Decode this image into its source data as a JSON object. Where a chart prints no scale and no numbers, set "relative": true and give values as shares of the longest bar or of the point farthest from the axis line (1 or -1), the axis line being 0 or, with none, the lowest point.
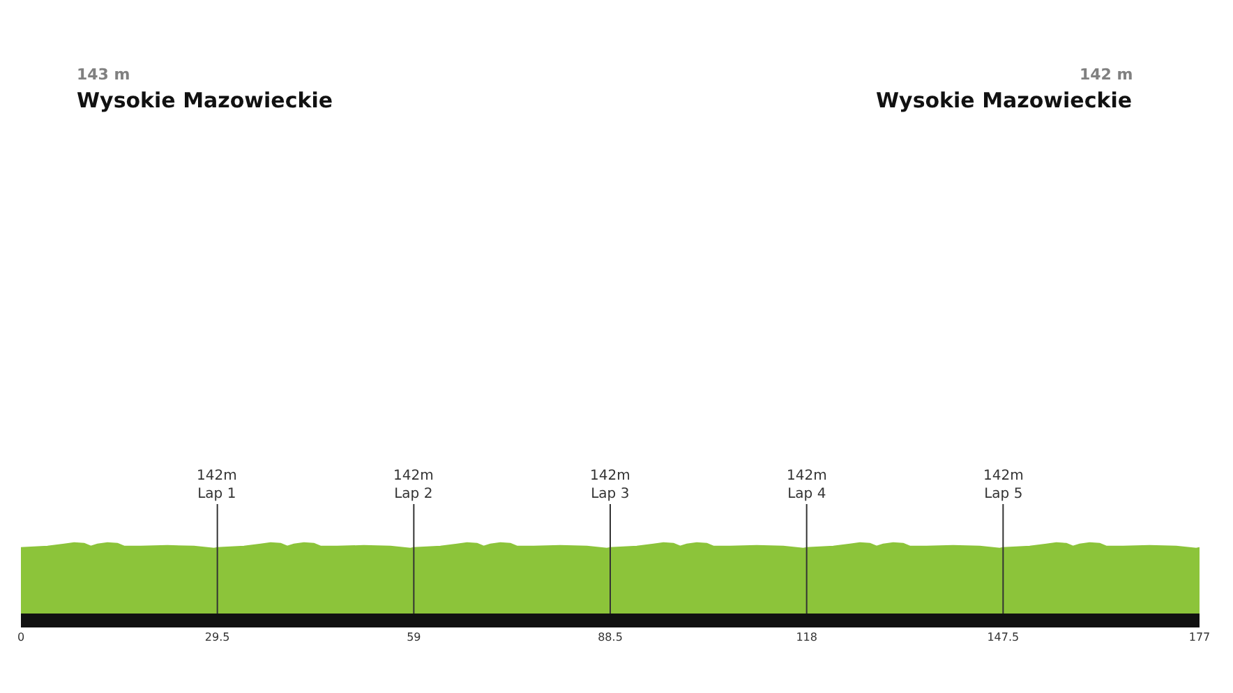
{
  "chart_data": {
    "type": "area",
    "relative": true,
    "color": "#8cc43a",
    "annotations": [
      "143 m",
      "Wysokie Mazowieckie",
      "142 m",
      "Wysokie Mazowieckie"
    ],
    "x": [
      0,
      4,
      6.5,
      8,
      9.5,
      10.5,
      11.5,
      13,
      14.5,
      15.5,
      18,
      22,
      26,
      29,
      29.5,
      33.5,
      36,
      37.5,
      39,
      40,
      41,
      42.5,
      44,
      45,
      47.5,
      51.5,
      55.5,
      58.5,
      59,
      63,
      65.5,
      67,
      68.5,
      69.5,
      70.5,
      72,
      73.5,
      74.5,
      77,
      81,
      85,
      88,
      88.5,
      92.5,
      95,
      96.5,
      98,
      99,
      100,
      101.5,
      103,
      104,
      106.5,
      110.5,
      114.5,
      117.5,
      118,
      122,
      124.5,
      126,
      127.5,
      128.5,
      129.5,
      131,
      132.5,
      133.5,
      136,
      140,
      144,
      147,
      147.5,
      151.5,
      154,
      155.5,
      157,
      158,
      159,
      160.5,
      162,
      163,
      165.5,
      169.5,
      173.5,
      176.5,
      177
    ],
    "values": [
      0.93,
      0.95,
      0.98,
      1.0,
      0.99,
      0.95,
      0.98,
      1.0,
      0.99,
      0.95,
      0.95,
      0.96,
      0.95,
      0.92,
      0.93,
      0.95,
      0.98,
      1.0,
      0.99,
      0.95,
      0.98,
      1.0,
      0.99,
      0.95,
      0.95,
      0.96,
      0.95,
      0.92,
      0.93,
      0.95,
      0.98,
      1.0,
      0.99,
      0.95,
      0.98,
      1.0,
      0.99,
      0.95,
      0.95,
      0.96,
      0.95,
      0.92,
      0.93,
      0.95,
      0.98,
      1.0,
      0.99,
      0.95,
      0.98,
      1.0,
      0.99,
      0.95,
      0.95,
      0.96,
      0.95,
      0.92,
      0.93,
      0.95,
      0.98,
      1.0,
      0.99,
      0.95,
      0.98,
      1.0,
      0.99,
      0.95,
      0.95,
      0.96,
      0.95,
      0.92,
      0.93,
      0.95,
      0.98,
      1.0,
      0.99,
      0.95,
      0.98,
      1.0,
      0.99,
      0.95,
      0.95,
      0.96,
      0.95,
      0.92,
      0.93
    ],
    "xlim": [
      0,
      177
    ],
    "xticks": [
      0,
      29.5,
      59,
      88.5,
      118,
      147.5,
      177
    ],
    "ref_lines": [
      {
        "axis": "x",
        "value": 29.5,
        "label": "142m\nLap 1",
        "color": "#333333"
      },
      {
        "axis": "x",
        "value": 59,
        "label": "142m\nLap 2",
        "color": "#333333"
      },
      {
        "axis": "x",
        "value": 88.5,
        "label": "142m\nLap 3",
        "color": "#333333"
      },
      {
        "axis": "x",
        "value": 118,
        "label": "142m\nLap 4",
        "color": "#333333"
      },
      {
        "axis": "x",
        "value": 147.5,
        "label": "142m\nLap 5",
        "color": "#333333"
      }
    ],
    "legend": false
  }
}
